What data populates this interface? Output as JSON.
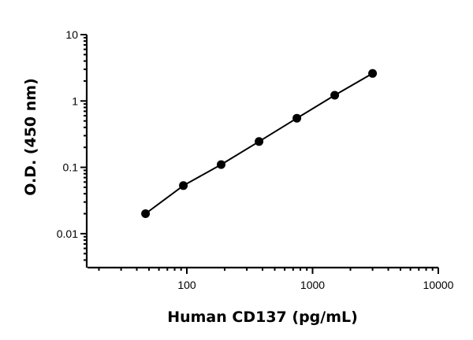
{
  "chart_data": {
    "type": "scatter",
    "title": "",
    "xlabel": "Human CD137 (pg/mL)",
    "ylabel": "O.D. (450 nm)",
    "x_scale": "log",
    "y_scale": "log",
    "xlim": [
      15,
      10000
    ],
    "ylim": [
      0.0035,
      10
    ],
    "x_ticks": [
      100,
      1000,
      10000
    ],
    "x_tick_labels": [
      "100",
      "1000",
      "10000"
    ],
    "y_ticks": [
      0.01,
      0.1,
      1,
      10
    ],
    "y_tick_labels": [
      "0.01",
      "0.1",
      "1",
      "10"
    ],
    "grid": false,
    "legend": "none",
    "series": [
      {
        "x": [
          46.9,
          93.8,
          187.5,
          375,
          750,
          1500,
          3000
        ],
        "y": [
          0.02,
          0.053,
          0.11,
          0.245,
          0.55,
          1.22,
          2.6
        ],
        "fit_line": true
      }
    ]
  }
}
